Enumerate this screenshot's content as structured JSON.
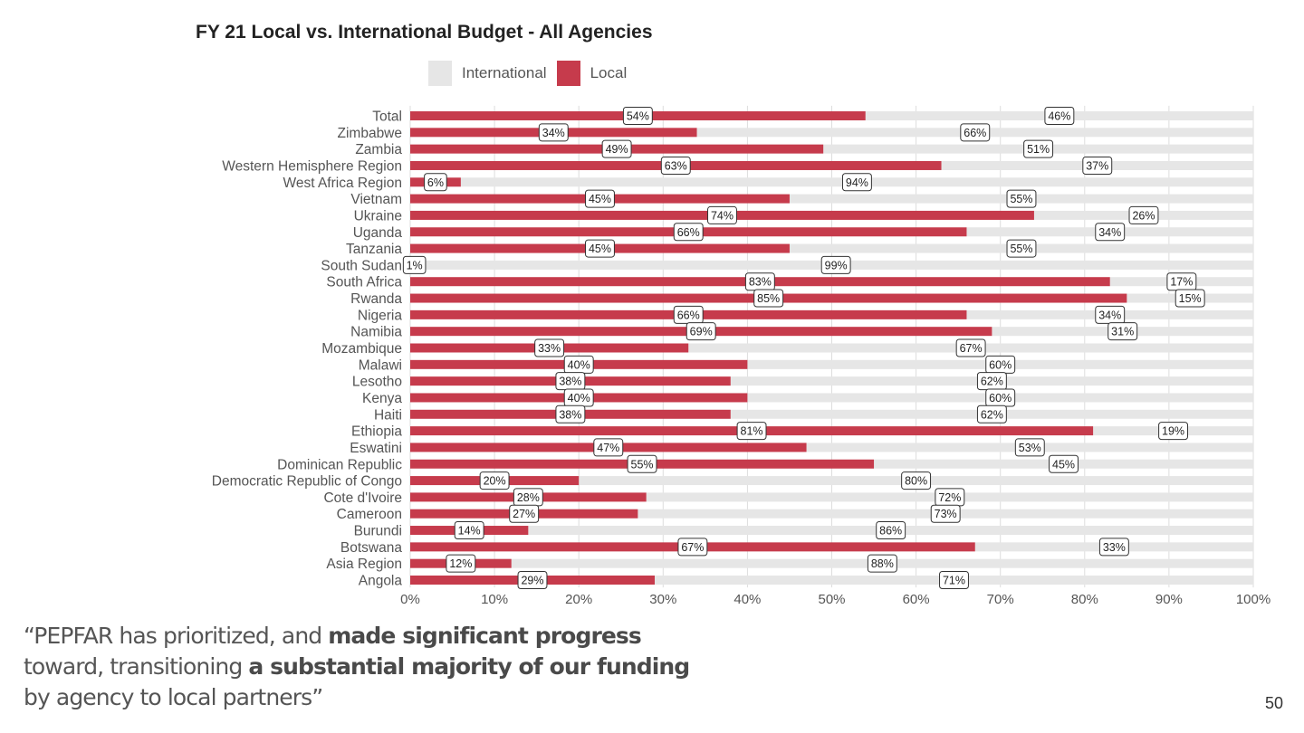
{
  "slide": {
    "page_number": "50",
    "quote": {
      "segments": [
        {
          "text": "“PEPFAR has prioritized, and ",
          "bold": false
        },
        {
          "text": "made significant progress",
          "bold": true
        },
        {
          "text": " toward, transitioning ",
          "bold": false
        },
        {
          "text": "a substantial majority of our funding",
          "bold": true
        },
        {
          "text": " by agency to local partners”",
          "bold": false
        }
      ]
    }
  },
  "colors": {
    "local": "#C63B4C",
    "international": "#E6E6E6",
    "grid": "#DDDDDD",
    "label_text": "#555555",
    "title_text": "#222222"
  },
  "chart_data": {
    "type": "bar",
    "orientation": "horizontal",
    "stacked": true,
    "title": "FY 21 Local vs. International Budget - All Agencies",
    "xlabel": "",
    "ylabel": "",
    "xlim": [
      0,
      100
    ],
    "x_ticks": [
      "0%",
      "10%",
      "20%",
      "30%",
      "40%",
      "50%",
      "60%",
      "70%",
      "80%",
      "90%",
      "100%"
    ],
    "grid": true,
    "legend": {
      "placement": "top",
      "entries": [
        {
          "name": "International",
          "color": "#E6E6E6"
        },
        {
          "name": "Local",
          "color": "#C63B4C"
        }
      ]
    },
    "categories": [
      "Total",
      "Zimbabwe",
      "Zambia",
      "Western Hemisphere Region",
      "West Africa Region",
      "Vietnam",
      "Ukraine",
      "Uganda",
      "Tanzania",
      "South Sudan",
      "South Africa",
      "Rwanda",
      "Nigeria",
      "Namibia",
      "Mozambique",
      "Malawi",
      "Lesotho",
      "Kenya",
      "Haiti",
      "Ethiopia",
      "Eswatini",
      "Dominican Republic",
      "Democratic Republic of Congo",
      "Cote d'Ivoire",
      "Cameroon",
      "Burundi",
      "Botswana",
      "Asia Region",
      "Angola"
    ],
    "series": [
      {
        "name": "Local",
        "values": [
          54,
          34,
          49,
          63,
          6,
          45,
          74,
          66,
          45,
          1,
          83,
          85,
          66,
          69,
          33,
          40,
          38,
          40,
          38,
          81,
          47,
          55,
          20,
          28,
          27,
          14,
          67,
          12,
          29
        ]
      },
      {
        "name": "International",
        "values": [
          46,
          66,
          51,
          37,
          94,
          55,
          26,
          34,
          55,
          99,
          17,
          15,
          34,
          31,
          67,
          60,
          62,
          60,
          62,
          19,
          53,
          45,
          80,
          72,
          73,
          86,
          33,
          88,
          71
        ]
      }
    ],
    "data_label_format": "{v}%"
  }
}
